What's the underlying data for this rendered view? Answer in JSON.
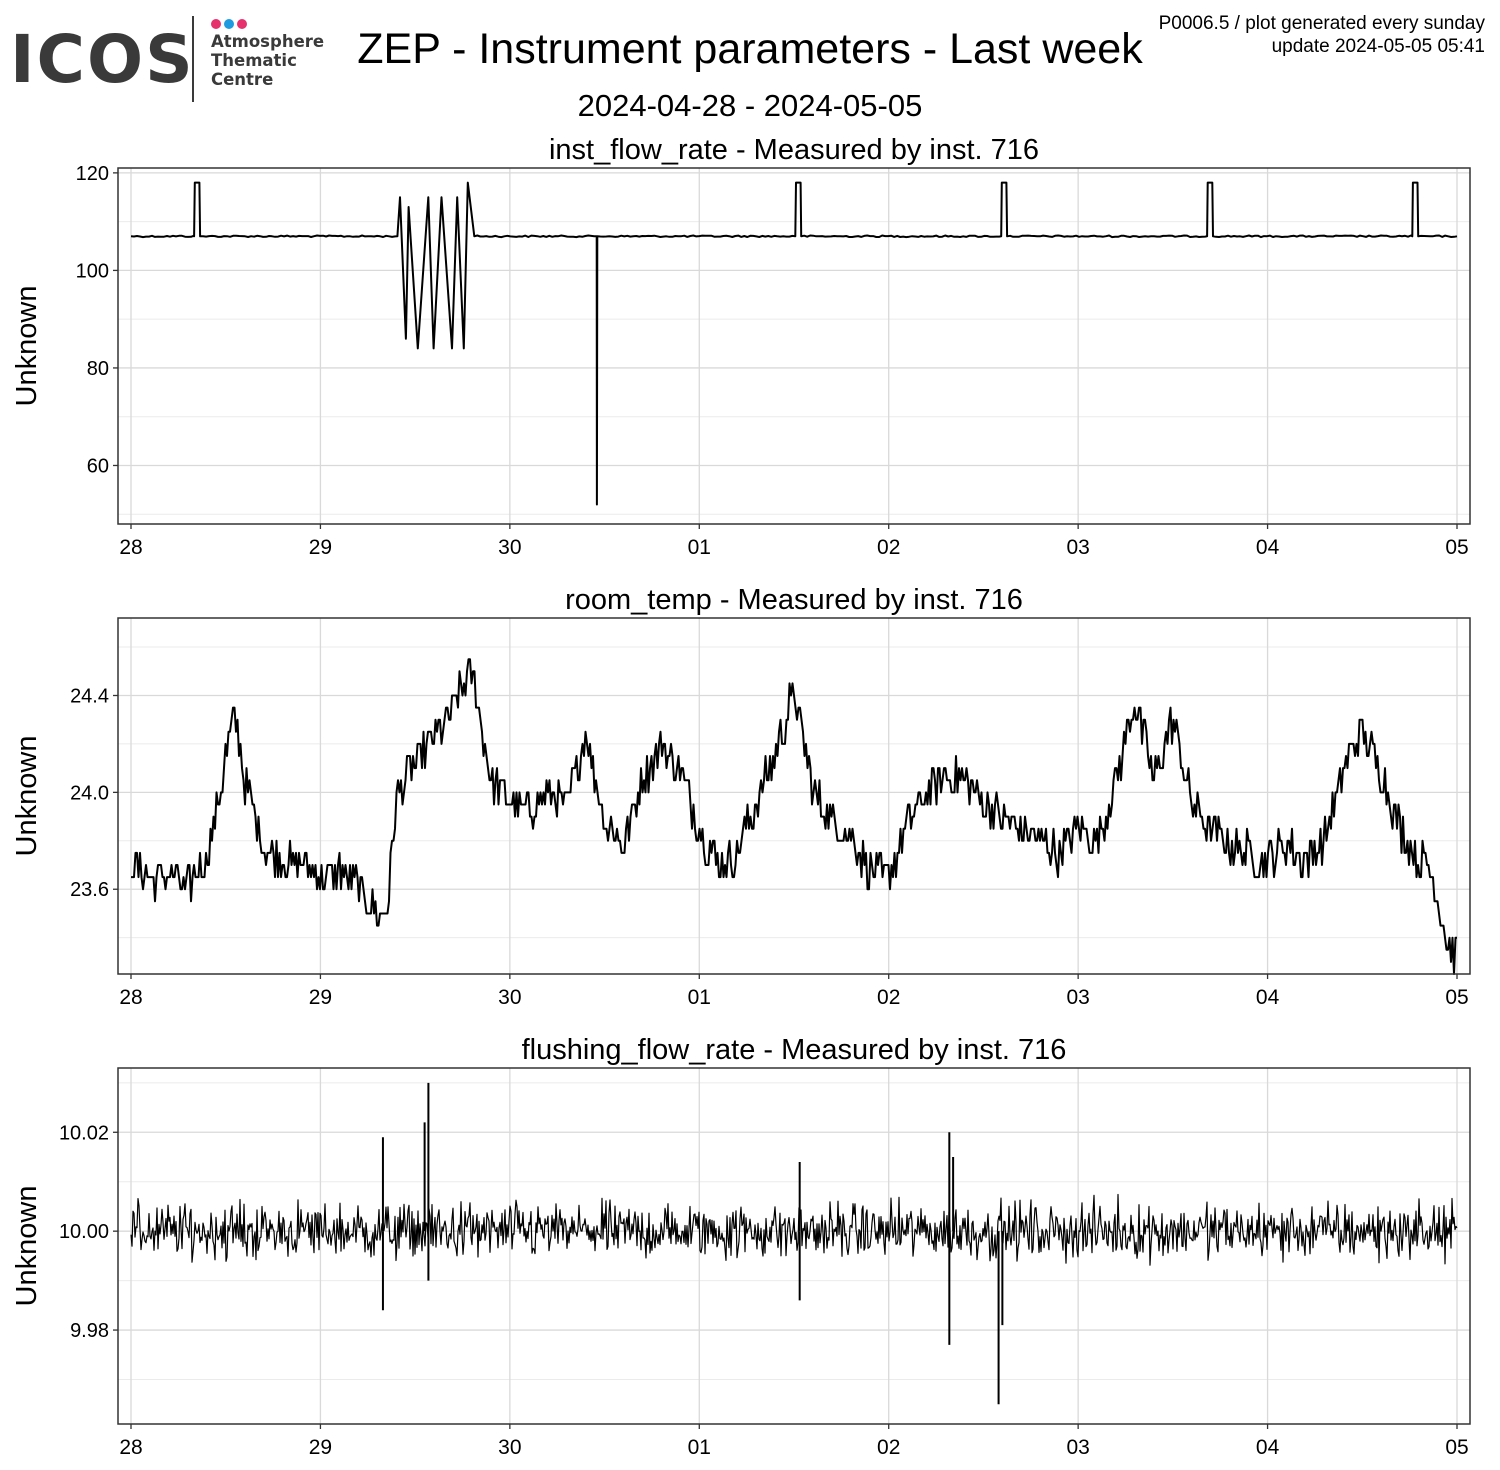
{
  "logo": {
    "wordmark": "ICOS",
    "lines": [
      "Atmosphere",
      "Thematic",
      "Centre"
    ],
    "dot_colors": [
      "#e6306e",
      "#1e9be0",
      "#e6306e"
    ]
  },
  "header": {
    "title": "ZEP - Instrument parameters - Last week",
    "date_range": "2024-04-28 - 2024-05-05",
    "meta_line1": "P0006.5 / plot generated every sunday",
    "meta_line2": "update  2024-05-05 05:41"
  },
  "chart_data": [
    {
      "type": "line",
      "title": "inst_flow_rate - Measured by inst. 716",
      "ylabel": "Unknown",
      "xlim": [
        "2024-04-28",
        "2024-05-05"
      ],
      "x_ticks": [
        "28",
        "29",
        "30",
        "01",
        "02",
        "03",
        "04",
        "05"
      ],
      "ylim": [
        48,
        121
      ],
      "y_ticks": [
        60,
        80,
        100,
        120
      ],
      "y_tick_labels": [
        "60",
        "80",
        "100",
        "120"
      ],
      "grid": true,
      "line_color": "#000000",
      "baseline": 107,
      "series": [
        {
          "x": [
            "2024-04-28 00:00",
            "2024-04-28 08:00",
            "2024-04-28 08:05",
            "2024-04-28 08:40",
            "2024-04-28 08:45",
            "2024-04-29 09:45",
            "2024-04-29 10:05",
            "2024-04-29 10:50",
            "2024-04-29 11:10",
            "2024-04-29 12:20",
            "2024-04-29 13:40",
            "2024-04-29 14:20",
            "2024-04-29 15:20",
            "2024-04-29 16:40",
            "2024-04-29 17:20",
            "2024-04-29 18:10",
            "2024-04-29 18:40",
            "2024-04-29 19:30",
            "2024-04-30 11:00",
            "2024-04-30 11:02",
            "2024-04-30 11:05",
            "2024-05-01 12:10",
            "2024-05-01 12:15",
            "2024-05-01 12:50",
            "2024-05-01 12:55",
            "2024-05-02 14:15",
            "2024-05-02 14:20",
            "2024-05-02 14:55",
            "2024-05-02 15:00",
            "2024-05-03 16:20",
            "2024-05-03 16:25",
            "2024-05-03 17:00",
            "2024-05-03 17:05",
            "2024-05-04 18:20",
            "2024-05-04 18:25",
            "2024-05-04 19:00",
            "2024-05-04 19:05",
            "2024-05-05 00:00"
          ],
          "y": [
            107,
            107,
            118,
            118,
            107,
            107,
            115,
            86,
            113,
            84,
            115,
            84,
            115,
            84,
            115,
            84,
            118,
            107,
            107,
            52,
            107,
            107,
            118,
            118,
            107,
            107,
            118,
            118,
            107,
            107,
            118,
            118,
            107,
            107,
            118,
            118,
            107,
            107
          ]
        }
      ]
    },
    {
      "type": "line",
      "title": "room_temp - Measured by inst. 716",
      "ylabel": "Unknown",
      "xlim": [
        "2024-04-28",
        "2024-05-05"
      ],
      "x_ticks": [
        "28",
        "29",
        "30",
        "01",
        "02",
        "03",
        "04",
        "05"
      ],
      "ylim": [
        23.25,
        24.72
      ],
      "y_ticks": [
        23.6,
        24.0,
        24.4
      ],
      "y_tick_labels": [
        "23.6",
        "24.0",
        "24.4"
      ],
      "grid": true,
      "line_color": "#000000",
      "series": [
        {
          "x_days": [
            0.0,
            0.1,
            0.2,
            0.3,
            0.35,
            0.4,
            0.45,
            0.5,
            0.55,
            0.6,
            0.7,
            0.8,
            0.9,
            1.0,
            1.1,
            1.2,
            1.25,
            1.3,
            1.35,
            1.4,
            1.5,
            1.6,
            1.7,
            1.8,
            1.9,
            2.0,
            2.1,
            2.2,
            2.3,
            2.4,
            2.5,
            2.6,
            2.7,
            2.8,
            2.9,
            3.0,
            3.1,
            3.2,
            3.3,
            3.4,
            3.5,
            3.6,
            3.7,
            3.8,
            3.9,
            4.0,
            4.1,
            4.2,
            4.3,
            4.4,
            4.5,
            4.6,
            4.7,
            4.8,
            4.9,
            5.0,
            5.1,
            5.2,
            5.3,
            5.4,
            5.5,
            5.6,
            5.7,
            5.8,
            5.9,
            6.0,
            6.1,
            6.2,
            6.3,
            6.4,
            6.5,
            6.6,
            6.7,
            6.8,
            6.85,
            6.9,
            6.95,
            7.0
          ],
          "y": [
            23.72,
            23.64,
            23.66,
            23.6,
            23.68,
            23.72,
            23.9,
            24.15,
            24.32,
            24.05,
            23.78,
            23.7,
            23.72,
            23.65,
            23.68,
            23.62,
            23.55,
            23.5,
            23.5,
            23.96,
            24.12,
            24.22,
            24.35,
            24.5,
            24.06,
            23.95,
            23.92,
            24.0,
            23.95,
            24.25,
            23.88,
            23.78,
            24.05,
            24.2,
            24.08,
            23.85,
            23.7,
            23.75,
            23.95,
            24.15,
            24.42,
            24.0,
            23.88,
            23.82,
            23.68,
            23.65,
            23.88,
            24.0,
            24.08,
            24.05,
            23.95,
            23.9,
            23.85,
            23.8,
            23.75,
            23.85,
            23.8,
            24.05,
            24.38,
            24.05,
            24.3,
            23.95,
            23.85,
            23.78,
            23.75,
            23.72,
            23.78,
            23.72,
            23.8,
            24.1,
            24.25,
            24.08,
            23.85,
            23.72,
            23.7,
            23.55,
            23.38,
            23.33
          ]
        }
      ]
    },
    {
      "type": "line",
      "title": "flushing_flow_rate - Measured by inst. 716",
      "ylabel": "Unknown",
      "xlim": [
        "2024-04-28",
        "2024-05-05"
      ],
      "x_ticks": [
        "28",
        "29",
        "30",
        "01",
        "02",
        "03",
        "04",
        "05"
      ],
      "ylim": [
        9.961,
        10.033
      ],
      "y_ticks": [
        9.98,
        10.0,
        10.02
      ],
      "y_tick_labels": [
        "9.98",
        "10.00",
        "10.02"
      ],
      "grid": true,
      "line_color": "#000000",
      "baseline": 10.0,
      "noise_amplitude": 0.005,
      "spikes": [
        {
          "x_days": 1.33,
          "y": 10.019
        },
        {
          "x_days": 1.33,
          "y": 9.984
        },
        {
          "x_days": 1.57,
          "y": 10.03
        },
        {
          "x_days": 1.57,
          "y": 9.99
        },
        {
          "x_days": 1.55,
          "y": 10.022
        },
        {
          "x_days": 3.53,
          "y": 10.014
        },
        {
          "x_days": 3.53,
          "y": 9.986
        },
        {
          "x_days": 4.32,
          "y": 10.02
        },
        {
          "x_days": 4.32,
          "y": 9.977
        },
        {
          "x_days": 4.34,
          "y": 10.015
        },
        {
          "x_days": 4.58,
          "y": 9.965
        },
        {
          "x_days": 4.6,
          "y": 9.981
        }
      ]
    }
  ]
}
